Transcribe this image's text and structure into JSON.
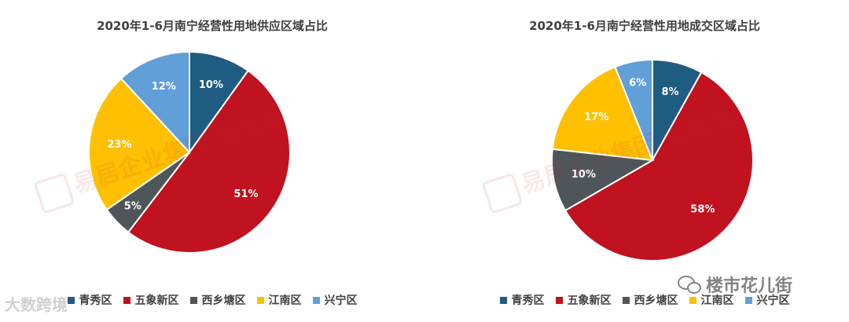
{
  "chart_data": [
    {
      "type": "pie",
      "title": "2020年1-6月南宁经营性用地供应区域占比",
      "slices": [
        {
          "label": "青秀区",
          "value": 10,
          "display": "10%",
          "color": "#1f5c82"
        },
        {
          "label": "五象新区",
          "value": 51,
          "display": "51%",
          "color": "#c0121f"
        },
        {
          "label": "西乡塘区",
          "value": 5,
          "display": "5%",
          "color": "#4f5659"
        },
        {
          "label": "江南区",
          "value": 23,
          "display": "23%",
          "color": "#fec000"
        },
        {
          "label": "兴宁区",
          "value": 12,
          "display": "12%",
          "color": "#609fd8"
        }
      ],
      "legend_position": "bottom"
    },
    {
      "type": "pie",
      "title": "2020年1-6月南宁经营性用地成交区域占比",
      "slices": [
        {
          "label": "青秀区",
          "value": 8,
          "display": "8%",
          "color": "#1f5c82"
        },
        {
          "label": "五象新区",
          "value": 58,
          "display": "58%",
          "color": "#c0121f"
        },
        {
          "label": "西乡塘区",
          "value": 10,
          "display": "10%",
          "color": "#4f5659"
        },
        {
          "label": "江南区",
          "value": 17,
          "display": "17%",
          "color": "#fec000"
        },
        {
          "label": "兴宁区",
          "value": 6,
          "display": "6%",
          "color": "#609fd8"
        }
      ],
      "legend_position": "bottom"
    }
  ],
  "watermark": {
    "text": "易居企业集团·克而瑞"
  },
  "footer": {
    "left_brand": "大数跨境",
    "right_brand": "楼市花儿街"
  }
}
